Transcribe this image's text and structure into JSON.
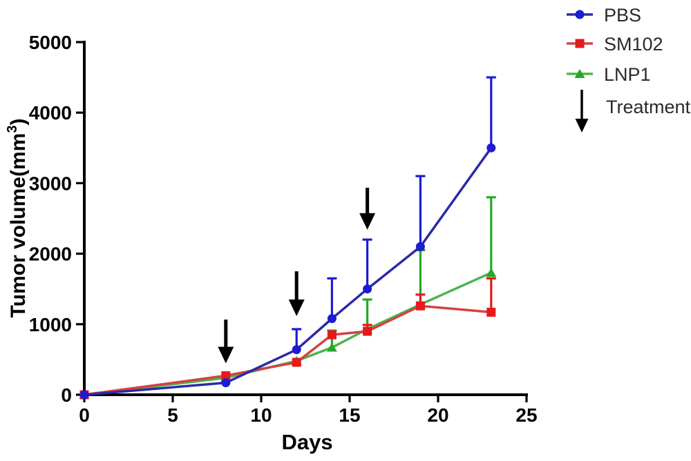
{
  "figure": {
    "background": "#ffffff",
    "text_color": "#000000",
    "arrow_color": "#000000"
  },
  "chart_data": {
    "type": "line",
    "x": [
      0,
      8,
      12,
      14,
      16,
      19,
      23
    ],
    "xlabel": "Days",
    "ylabel": {
      "main": "Tumor volume(mm",
      "sup": "3",
      "suffix": ")"
    },
    "xlim": [
      0,
      25
    ],
    "ylim": [
      0,
      5000
    ],
    "xticks": [
      0,
      5,
      10,
      15,
      20,
      25
    ],
    "yticks": [
      0,
      1000,
      2000,
      3000,
      4000,
      5000
    ],
    "grid": false,
    "error_bars": "upper-only",
    "series": [
      {
        "name": "PBS",
        "marker": "circle",
        "marker_color": "#1c1cd2",
        "line_color": "#2a2aa8",
        "values": [
          0,
          170,
          640,
          1080,
          1500,
          2100,
          3500
        ],
        "err_up": [
          0,
          0,
          290,
          570,
          700,
          1000,
          1000
        ]
      },
      {
        "name": "SM102",
        "marker": "square",
        "marker_color": "#e61a1a",
        "line_color": "#d24242",
        "values": [
          0,
          270,
          460,
          850,
          900,
          1260,
          1170
        ],
        "err_up": [
          0,
          0,
          0,
          0,
          90,
          160,
          480
        ]
      },
      {
        "name": "LNP1",
        "marker": "triangle",
        "marker_color": "#25a825",
        "line_color": "#4cb44c",
        "values": [
          0,
          240,
          480,
          670,
          930,
          1280,
          1730
        ],
        "err_up": [
          0,
          0,
          0,
          240,
          420,
          770,
          1070
        ]
      }
    ],
    "treatment_arrows": [
      {
        "day": 8,
        "from_volume": 1065,
        "to_volume": 445
      },
      {
        "day": 12,
        "from_volume": 1750,
        "to_volume": 1115
      },
      {
        "day": 16,
        "from_volume": 2935,
        "to_volume": 2340
      }
    ],
    "legend": {
      "position": "top-right",
      "entries": [
        {
          "label": "PBS",
          "marker": "circle"
        },
        {
          "label": "SM102",
          "marker": "square"
        },
        {
          "label": "LNP1",
          "marker": "triangle"
        },
        {
          "label": "Treatment",
          "marker": "arrow-down"
        }
      ]
    }
  }
}
